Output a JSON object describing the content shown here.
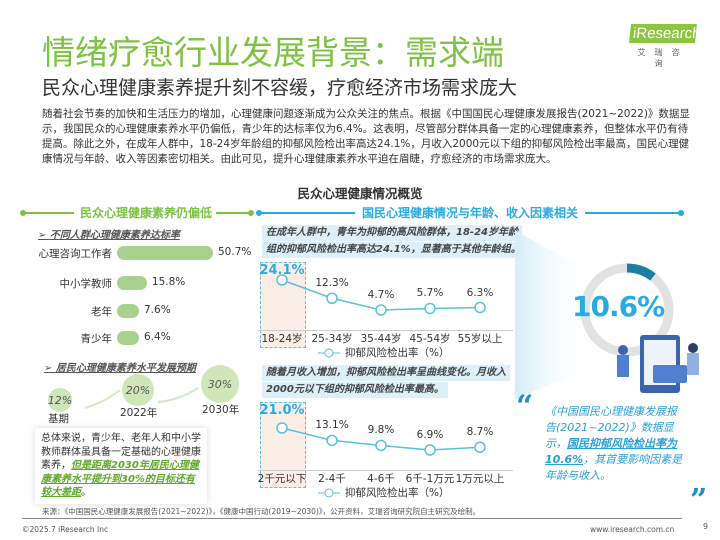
{
  "header": {
    "title": "情绪疗愈行业发展背景：需求端",
    "subtitle": "民众心理健康素养提升刻不容缓，疗愈经济市场需求庞大",
    "logo_text": "iResearch",
    "logo_cn": "艾瑞咨询"
  },
  "intro": "随着社会节奏的加快和生活压力的增加，心理健康问题逐渐成为公众关注的焦点。根据《中国国民心理健康发展报告(2021~2022)》数据显示，我国民众的心理健康素养水平仍偏低，青少年的达标率仅为6.4%。这表明，尽管部分群体具备一定的心理健康素养，但整体水平仍有待提高。除此之外，在成年人群中，18-24岁年龄组的抑郁风险检出率高达24.1%，月收入2000元以下组的抑郁风险检出率最高，国民心理健康情况与年龄、收入等因素密切相关。由此可见，提升心理健康素养水平迫在眉睫，疗愈经济的市场需求庞大。",
  "overview_title": "民众心理健康情况概览",
  "left": {
    "header": "民众心理健康素养仍偏低",
    "bars_title": "不同人群心理健康素养达标率",
    "bars": [
      {
        "label": "心理咨询工作者",
        "value": 50.7,
        "text": "50.7%"
      },
      {
        "label": "中小学教师",
        "value": 15.8,
        "text": "15.8%"
      },
      {
        "label": "老年",
        "value": 7.6,
        "text": "7.6%"
      },
      {
        "label": "青少年",
        "value": 6.4,
        "text": "6.4%"
      }
    ],
    "forecast_title": "居民心理健康素养水平发展预期",
    "forecast": [
      {
        "value": "12%",
        "label": "基期"
      },
      {
        "value": "20%",
        "label": "2022年"
      },
      {
        "value": "30%",
        "label": "2030年"
      }
    ],
    "summary_plain": "总体来说，青少年、老年人和中小学教师群体虽具备一定基础的心理健康素养，",
    "summary_highlight": "但是距离2030年居民心理健康素养水平提升到30%的目标还有较大差距",
    "summary_end": "。"
  },
  "middle": {
    "header": "国民心理健康情况与年龄、收入因素相关",
    "chart_data": [
      {
        "type": "line",
        "callout": [
          "在成年人群中，青年为抑郁的高风险群体，18-24岁年龄",
          "组的抑郁风险检出率高达24.1%，显著高于其他年龄组。"
        ],
        "categories": [
          "18-24岁",
          "25-34岁",
          "35-44岁",
          "45-54岁",
          "55岁以上"
        ],
        "series": [
          {
            "name": "抑郁风险检出率（%）",
            "values": [
              24.1,
              12.3,
              4.7,
              5.7,
              6.3
            ]
          }
        ],
        "labels": [
          "24.1%",
          "12.3%",
          "4.7%",
          "5.7%",
          "6.3%"
        ],
        "highlight": "18-24岁",
        "color": "#5bc0de"
      },
      {
        "type": "line",
        "callout": [
          "随着月收入增加，抑郁风险检出率呈曲线变化。月收入",
          "2000元以下组的抑郁风险检出率最高。"
        ],
        "categories": [
          "2千元以下",
          "2-4千",
          "4-6千",
          "6千-1万元",
          "1万元以上"
        ],
        "series": [
          {
            "name": "抑郁风险检出率（%）",
            "values": [
              21.0,
              13.1,
              9.8,
              6.9,
              8.7
            ]
          }
        ],
        "labels": [
          "21.0%",
          "13.1%",
          "9.8%",
          "6.9%",
          "8.7%"
        ],
        "highlight": "2千元以下",
        "color": "#5bc0de"
      }
    ]
  },
  "right": {
    "donut_value": "10.6%",
    "donut_fraction": 0.106,
    "quote_plain1": "《中国国民心理健康发展报告(2021~2022)》数据显示，",
    "quote_bold": "国民抑郁风险检出率为10.6%",
    "quote_plain2": "，其首要影响因素是年龄与收入。",
    "open_quote": "“",
    "close_quote": "”"
  },
  "footer": {
    "source": "来源：《中国国民心理健康发展报告(2021~2022)》，《健康中国行动(2019~2030)》，公开资料，艾瑞咨询研究院自主研究及绘制。",
    "copyright": "©2025.7 iResearch Inc",
    "site": "www.iresearch.com.cn",
    "page": "9"
  },
  "colors": {
    "green": "#7dc242",
    "blue": "#29abe2",
    "bar": "#a9d18e"
  }
}
